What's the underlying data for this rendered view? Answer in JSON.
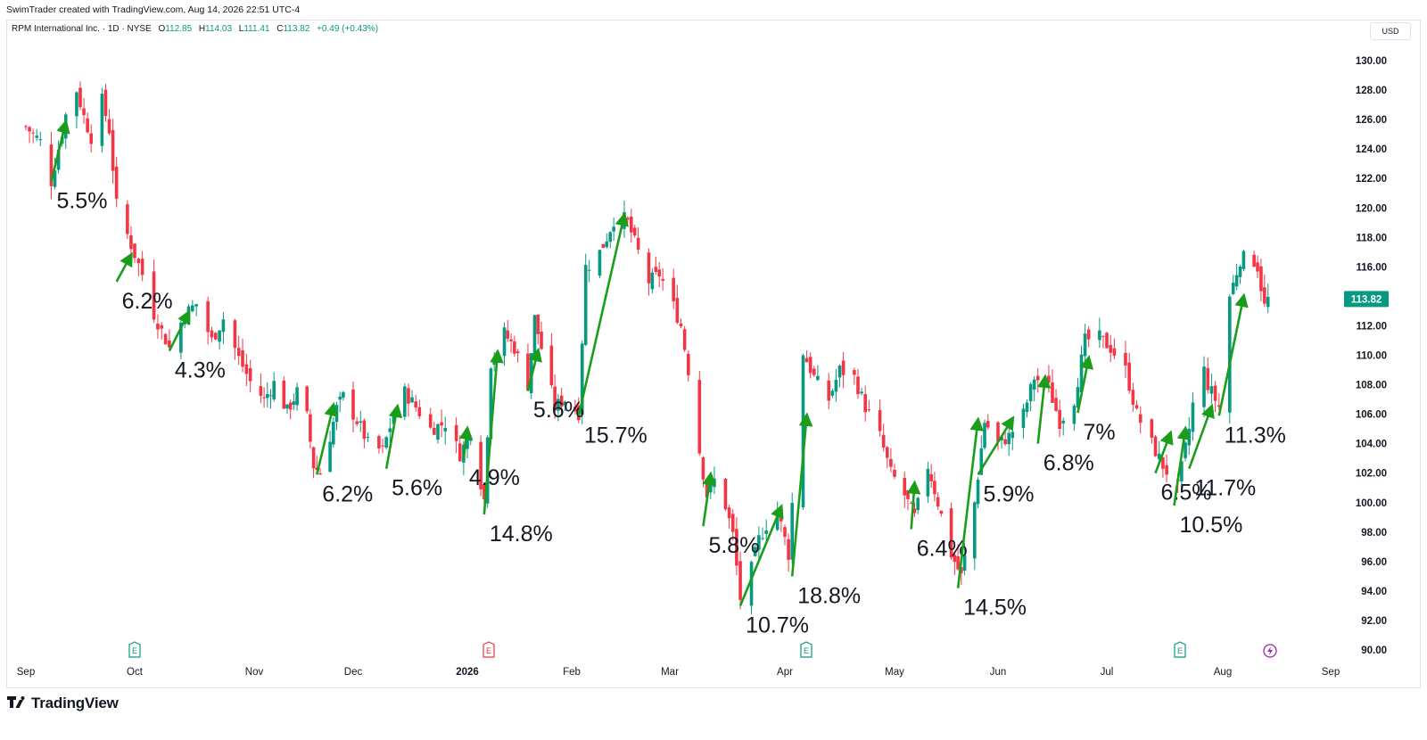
{
  "header": {
    "attribution": "SwimTrader created with TradingView.com, Aug 14, 2026 22:51 UTC-4"
  },
  "legend": {
    "symbol": "RPM International Inc. · 1D · NYSE",
    "open_label": "O",
    "open": "112.85",
    "high_label": "H",
    "high": "114.03",
    "low_label": "L",
    "low": "111.41",
    "close_label": "C",
    "close": "113.82",
    "change": "+0.49 (+0.43%)"
  },
  "currency": "USD",
  "brand": {
    "logo_icon": "tradingview-logo-icon",
    "name": "TradingView"
  },
  "colors": {
    "up": "#089981",
    "down": "#f23645",
    "arrow": "#1a9e1a",
    "last_price": "#089981"
  },
  "chart_data": {
    "type": "candlestick",
    "title": "",
    "y_axis": {
      "min": 90,
      "max": 130,
      "ticks": [
        "130.00",
        "128.00",
        "126.00",
        "124.00",
        "122.00",
        "120.00",
        "118.00",
        "116.00",
        "114.00",
        "112.00",
        "110.00",
        "108.00",
        "106.00",
        "104.00",
        "102.00",
        "100.00",
        "98.00",
        "96.00",
        "94.00",
        "92.00",
        "90.00"
      ]
    },
    "x_axis": {
      "ticks": [
        "Sep",
        "Oct",
        "Nov",
        "Dec",
        "2026",
        "Feb",
        "Mar",
        "Apr",
        "May",
        "Jun",
        "Jul",
        "Aug",
        "Sep"
      ]
    },
    "grid": false,
    "last_price": "113.82",
    "earnings_markers": [
      {
        "month": "Oct",
        "icon": "E",
        "color": "#089981"
      },
      {
        "month": "Jan",
        "icon": "E",
        "color": "#f23645"
      },
      {
        "month": "Apr",
        "icon": "E",
        "color": "#089981"
      },
      {
        "month": "Jul",
        "icon": "E",
        "color": "#089981"
      }
    ],
    "dividend_markers": [
      {
        "month": "Aug",
        "icon": "lightning-icon",
        "color": "#9c27b0"
      }
    ],
    "swing_annotations": [
      {
        "label": "5.5%",
        "from": [
          "2025-09-08",
          121.8
        ],
        "to": [
          "2025-09-12",
          125.8
        ]
      },
      {
        "label": "6.2%",
        "from": [
          "2025-09-26",
          115.0
        ],
        "to": [
          "2025-09-30",
          116.8
        ]
      },
      {
        "label": "4.3%",
        "from": [
          "2025-10-10",
          110.3
        ],
        "to": [
          "2025-10-15",
          112.9
        ]
      },
      {
        "label": "6.2%",
        "from": [
          "2025-11-20",
          101.9
        ],
        "to": [
          "2025-11-25",
          106.6
        ]
      },
      {
        "label": "5.6%",
        "from": [
          "2025-12-10",
          102.3
        ],
        "to": [
          "2025-12-13",
          106.5
        ]
      },
      {
        "label": "4.9%",
        "from": [
          "2025-12-31",
          103.0
        ],
        "to": [
          "2026-01-01",
          105.0
        ]
      },
      {
        "label": "14.8%",
        "from": [
          "2026-01-06",
          99.2
        ],
        "to": [
          "2026-01-10",
          110.2
        ]
      },
      {
        "label": "5.6%",
        "from": [
          "2026-01-19",
          107.6
        ],
        "to": [
          "2026-01-22",
          110.3
        ]
      },
      {
        "label": "15.7%",
        "from": [
          "2026-02-03",
          105.9
        ],
        "to": [
          "2026-02-16",
          119.5
        ]
      },
      {
        "label": "5.8%",
        "from": [
          "2026-03-10",
          98.4
        ],
        "to": [
          "2026-03-12",
          101.9
        ]
      },
      {
        "label": "10.7%",
        "from": [
          "2026-03-20",
          93.0
        ],
        "to": [
          "2026-03-31",
          99.7
        ]
      },
      {
        "label": "18.8%",
        "from": [
          "2026-04-03",
          95.0
        ],
        "to": [
          "2026-04-07",
          105.9
        ]
      },
      {
        "label": "6.4%",
        "from": [
          "2026-05-06",
          98.2
        ],
        "to": [
          "2026-05-07",
          101.3
        ]
      },
      {
        "label": "14.5%",
        "from": [
          "2026-05-20",
          94.2
        ],
        "to": [
          "2026-05-26",
          105.6
        ]
      },
      {
        "label": "5.9%",
        "from": [
          "2026-05-26",
          101.9
        ],
        "to": [
          "2026-06-05",
          105.7
        ]
      },
      {
        "label": "6.8%",
        "from": [
          "2026-06-12",
          104.0
        ],
        "to": [
          "2026-06-14",
          108.5
        ]
      },
      {
        "label": "7%",
        "from": [
          "2026-06-23",
          106.1
        ],
        "to": [
          "2026-06-26",
          109.8
        ]
      },
      {
        "label": "6.5%",
        "from": [
          "2026-07-14",
          102.0
        ],
        "to": [
          "2026-07-18",
          104.7
        ]
      },
      {
        "label": "10.5%",
        "from": [
          "2026-07-19",
          99.8
        ],
        "to": [
          "2026-07-22",
          105.0
        ]
      },
      {
        "label": "11.7%",
        "from": [
          "2026-07-23",
          102.3
        ],
        "to": [
          "2026-07-29",
          106.5
        ]
      },
      {
        "label": "11.3%",
        "from": [
          "2026-07-31",
          105.9
        ],
        "to": [
          "2026-08-07",
          114.0
        ]
      }
    ],
    "price_path": [
      [
        "2025-09-01",
        125.5
      ],
      [
        "2025-09-05",
        124.5
      ],
      [
        "2025-09-08",
        121.8
      ],
      [
        "2025-09-12",
        126.3
      ],
      [
        "2025-09-15",
        128.0
      ],
      [
        "2025-09-17",
        126.2
      ],
      [
        "2025-09-19",
        124.8
      ],
      [
        "2025-09-22",
        127.3
      ],
      [
        "2025-09-24",
        125.3
      ],
      [
        "2025-09-26",
        120.2
      ],
      [
        "2025-09-30",
        117.5
      ],
      [
        "2025-10-03",
        115.5
      ],
      [
        "2025-10-06",
        112.8
      ],
      [
        "2025-10-10",
        110.5
      ],
      [
        "2025-10-14",
        112.8
      ],
      [
        "2025-10-17",
        113.5
      ],
      [
        "2025-10-21",
        111.0
      ],
      [
        "2025-10-24",
        112.5
      ],
      [
        "2025-10-28",
        109.8
      ],
      [
        "2025-10-31",
        108.2
      ],
      [
        "2025-11-04",
        107.0
      ],
      [
        "2025-11-07",
        108.1
      ],
      [
        "2025-11-11",
        106.2
      ],
      [
        "2025-11-14",
        107.5
      ],
      [
        "2025-11-17",
        105.8
      ],
      [
        "2025-11-19",
        102.5
      ],
      [
        "2025-11-21",
        102.0
      ],
      [
        "2025-11-24",
        104.5
      ],
      [
        "2025-11-26",
        106.4
      ],
      [
        "2025-11-28",
        107.2
      ],
      [
        "2025-12-01",
        106.0
      ],
      [
        "2025-12-03",
        105.1
      ],
      [
        "2025-12-05",
        104.0
      ],
      [
        "2025-12-09",
        103.5
      ],
      [
        "2025-12-12",
        106.0
      ],
      [
        "2025-12-15",
        107.5
      ],
      [
        "2025-12-18",
        106.5
      ],
      [
        "2025-12-22",
        105.0
      ],
      [
        "2025-12-26",
        105.4
      ],
      [
        "2025-12-30",
        103.3
      ],
      [
        "2026-01-02",
        104.8
      ],
      [
        "2026-01-06",
        100.2
      ],
      [
        "2026-01-08",
        109.5
      ],
      [
        "2026-01-12",
        111.5
      ],
      [
        "2026-01-15",
        110.5
      ],
      [
        "2026-01-19",
        108.0
      ],
      [
        "2026-01-21",
        112.5
      ],
      [
        "2026-01-24",
        109.5
      ],
      [
        "2026-01-27",
        106.5
      ],
      [
        "2026-01-30",
        107.0
      ],
      [
        "2026-02-03",
        106.1
      ],
      [
        "2026-02-05",
        116.0
      ],
      [
        "2026-02-08",
        116.5
      ],
      [
        "2026-02-11",
        118.0
      ],
      [
        "2026-02-14",
        119.8
      ],
      [
        "2026-02-17",
        119.0
      ],
      [
        "2026-02-20",
        117.0
      ],
      [
        "2026-02-23",
        115.0
      ],
      [
        "2026-02-26",
        115.5
      ],
      [
        "2026-03-01",
        114.0
      ],
      [
        "2026-03-04",
        112.0
      ],
      [
        "2026-03-06",
        109.0
      ],
      [
        "2026-03-09",
        103.5
      ],
      [
        "2026-03-11",
        100.5
      ],
      [
        "2026-03-13",
        101.5
      ],
      [
        "2026-03-16",
        99.8
      ],
      [
        "2026-03-18",
        97.8
      ],
      [
        "2026-03-20",
        93.5
      ],
      [
        "2026-03-23",
        95.5
      ],
      [
        "2026-03-25",
        97.5
      ],
      [
        "2026-03-27",
        98.5
      ],
      [
        "2026-03-30",
        99.5
      ],
      [
        "2026-04-02",
        96.5
      ],
      [
        "2026-04-06",
        110.2
      ],
      [
        "2026-04-09",
        108.5
      ],
      [
        "2026-04-13",
        107.0
      ],
      [
        "2026-04-16",
        109.0
      ],
      [
        "2026-04-20",
        108.5
      ],
      [
        "2026-04-23",
        106.5
      ],
      [
        "2026-04-27",
        104.5
      ],
      [
        "2026-04-30",
        102.0
      ],
      [
        "2026-05-04",
        100.5
      ],
      [
        "2026-05-07",
        99.0
      ],
      [
        "2026-05-11",
        102.5
      ],
      [
        "2026-05-14",
        100.0
      ],
      [
        "2026-05-18",
        96.5
      ],
      [
        "2026-05-21",
        95.0
      ],
      [
        "2026-05-25",
        100.0
      ],
      [
        "2026-05-28",
        105.5
      ],
      [
        "2026-06-01",
        104.0
      ],
      [
        "2026-06-04",
        104.5
      ],
      [
        "2026-06-08",
        106.0
      ],
      [
        "2026-06-11",
        108.5
      ],
      [
        "2026-06-15",
        107.8
      ],
      [
        "2026-06-18",
        105.5
      ],
      [
        "2026-06-22",
        107.0
      ],
      [
        "2026-06-25",
        111.0
      ],
      [
        "2026-06-29",
        111.2
      ],
      [
        "2026-07-02",
        110.5
      ],
      [
        "2026-07-06",
        109.0
      ],
      [
        "2026-07-09",
        106.0
      ],
      [
        "2026-07-13",
        104.0
      ],
      [
        "2026-07-16",
        102.5
      ],
      [
        "2026-07-20",
        101.0
      ],
      [
        "2026-07-23",
        105.0
      ],
      [
        "2026-07-26",
        110.0
      ],
      [
        "2026-07-28",
        108.0
      ],
      [
        "2026-07-31",
        106.5
      ],
      [
        "2026-08-03",
        114.0
      ],
      [
        "2026-08-06",
        116.5
      ],
      [
        "2026-08-09",
        116.8
      ],
      [
        "2026-08-11",
        116.0
      ],
      [
        "2026-08-13",
        113.3
      ],
      [
        "2026-08-14",
        113.82
      ]
    ]
  }
}
